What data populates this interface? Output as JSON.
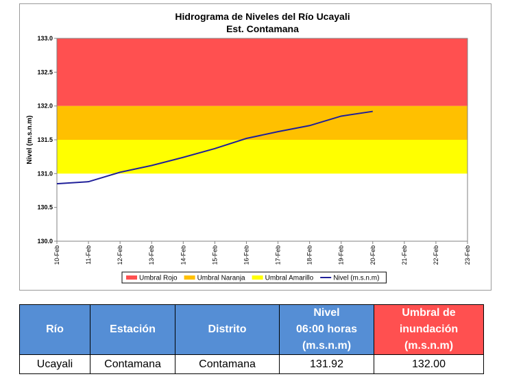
{
  "chart_data": {
    "type": "line",
    "title": "Hidrograma de Niveles del Río Ucayali",
    "subtitle": "Est. Contamana",
    "y_label": "Nivel (m.s.n.m)",
    "categories": [
      "10-Feb",
      "11-Feb",
      "12-Feb",
      "13-Feb",
      "14-Feb",
      "15-Feb",
      "16-Feb",
      "17-Feb",
      "18-Feb",
      "19-Feb",
      "20-Feb",
      "21-Feb",
      "22-Feb",
      "23-Feb"
    ],
    "bands": [
      {
        "name": "Umbral Rojo",
        "color": "#ff5050",
        "from": 132,
        "to": 133
      },
      {
        "name": "Umbral Naranja",
        "color": "#ffc000",
        "from": 131.5,
        "to": 132
      },
      {
        "name": "Umbral Amarillo",
        "color": "#ffff00",
        "from": 131,
        "to": 131.5
      }
    ],
    "series": [
      {
        "name": "Nivel (m.s.n.m)",
        "color": "#1f1f99",
        "values": [
          130.85,
          130.88,
          131.02,
          131.12,
          131.24,
          131.37,
          131.52,
          131.62,
          131.71,
          131.85,
          131.92,
          null,
          null,
          null
        ]
      }
    ],
    "ylim": [
      130,
      133
    ],
    "yticks": [
      {
        "value": 130,
        "label": "130.0"
      },
      130.5,
      {
        "value": 131,
        "label": "131.0"
      },
      131.5,
      {
        "value": 132,
        "label": "132.0"
      },
      132.5,
      {
        "value": 133,
        "label": "133.0"
      }
    ],
    "grid": false,
    "legend": "bottom"
  },
  "table": {
    "headers": [
      "Río",
      "Estación",
      "Distrito",
      "Nivel\n06:00 horas\n(m.s.n.m)",
      "Umbral de\ninundación\n(m.s.n.m)"
    ],
    "rows": [
      [
        "Ucayali",
        "Contamana",
        "Contamana",
        "131.92",
        "132.00"
      ]
    ]
  }
}
